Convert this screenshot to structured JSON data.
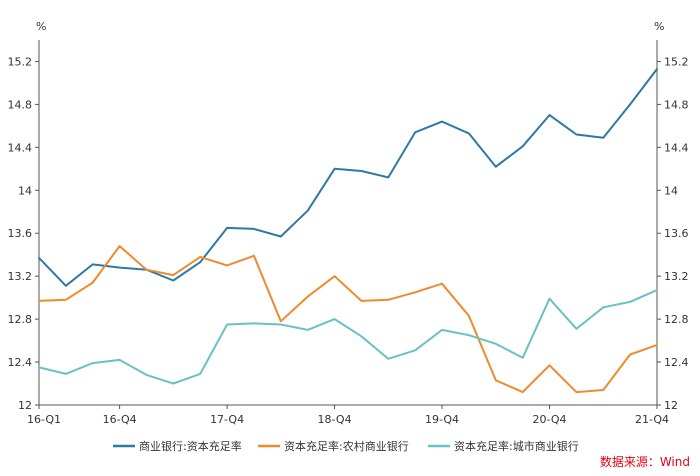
{
  "chart_data": {
    "type": "line",
    "x": [
      "16-Q1",
      "16-Q2",
      "16-Q3",
      "16-Q4",
      "17-Q1",
      "17-Q2",
      "17-Q3",
      "17-Q4",
      "18-Q1",
      "18-Q2",
      "18-Q3",
      "18-Q4",
      "19-Q1",
      "19-Q2",
      "19-Q3",
      "19-Q4",
      "20-Q1",
      "20-Q2",
      "20-Q3",
      "20-Q4",
      "21-Q1",
      "21-Q2",
      "21-Q3",
      "21-Q4"
    ],
    "xtick_labels": [
      "16-Q1",
      "16-Q4",
      "17-Q4",
      "18-Q4",
      "19-Q4",
      "20-Q4",
      "21-Q4"
    ],
    "xtick_indices": [
      0,
      3,
      7,
      11,
      15,
      19,
      23
    ],
    "ylim": [
      12,
      15.4
    ],
    "yticks": [
      "12",
      "12.4",
      "12.8",
      "13.2",
      "13.6",
      "14",
      "14.4",
      "14.8",
      "15.2"
    ],
    "y_unit_left": "%",
    "y_unit_right": "%",
    "grid": false,
    "legend_position": "bottom",
    "series": [
      {
        "name": "商业银行:资本充足率",
        "color": "#2e7aa0",
        "values": [
          13.37,
          13.11,
          13.31,
          13.28,
          13.26,
          13.16,
          13.33,
          13.65,
          13.64,
          13.57,
          13.81,
          14.2,
          14.18,
          14.12,
          14.54,
          14.64,
          14.53,
          14.22,
          14.41,
          14.7,
          14.52,
          14.49,
          14.8,
          15.13
        ]
      },
      {
        "name": "资本充足率:农村商业银行",
        "color": "#ef8a2e",
        "values": [
          12.97,
          12.98,
          13.14,
          13.48,
          13.26,
          13.21,
          13.38,
          13.3,
          13.39,
          12.78,
          13.01,
          13.2,
          12.97,
          12.98,
          13.05,
          13.13,
          12.83,
          12.23,
          12.12,
          12.37,
          12.12,
          12.14,
          12.47,
          12.56
        ]
      },
      {
        "name": "资本充足率:城市商业银行",
        "color": "#69c1c6",
        "values": [
          12.35,
          12.29,
          12.39,
          12.42,
          12.28,
          12.2,
          12.29,
          12.75,
          12.76,
          12.75,
          12.7,
          12.8,
          12.64,
          12.43,
          12.51,
          12.7,
          12.65,
          12.57,
          12.44,
          12.99,
          12.71,
          12.91,
          12.96,
          13.07
        ]
      }
    ],
    "source": "数据来源：Wind"
  }
}
